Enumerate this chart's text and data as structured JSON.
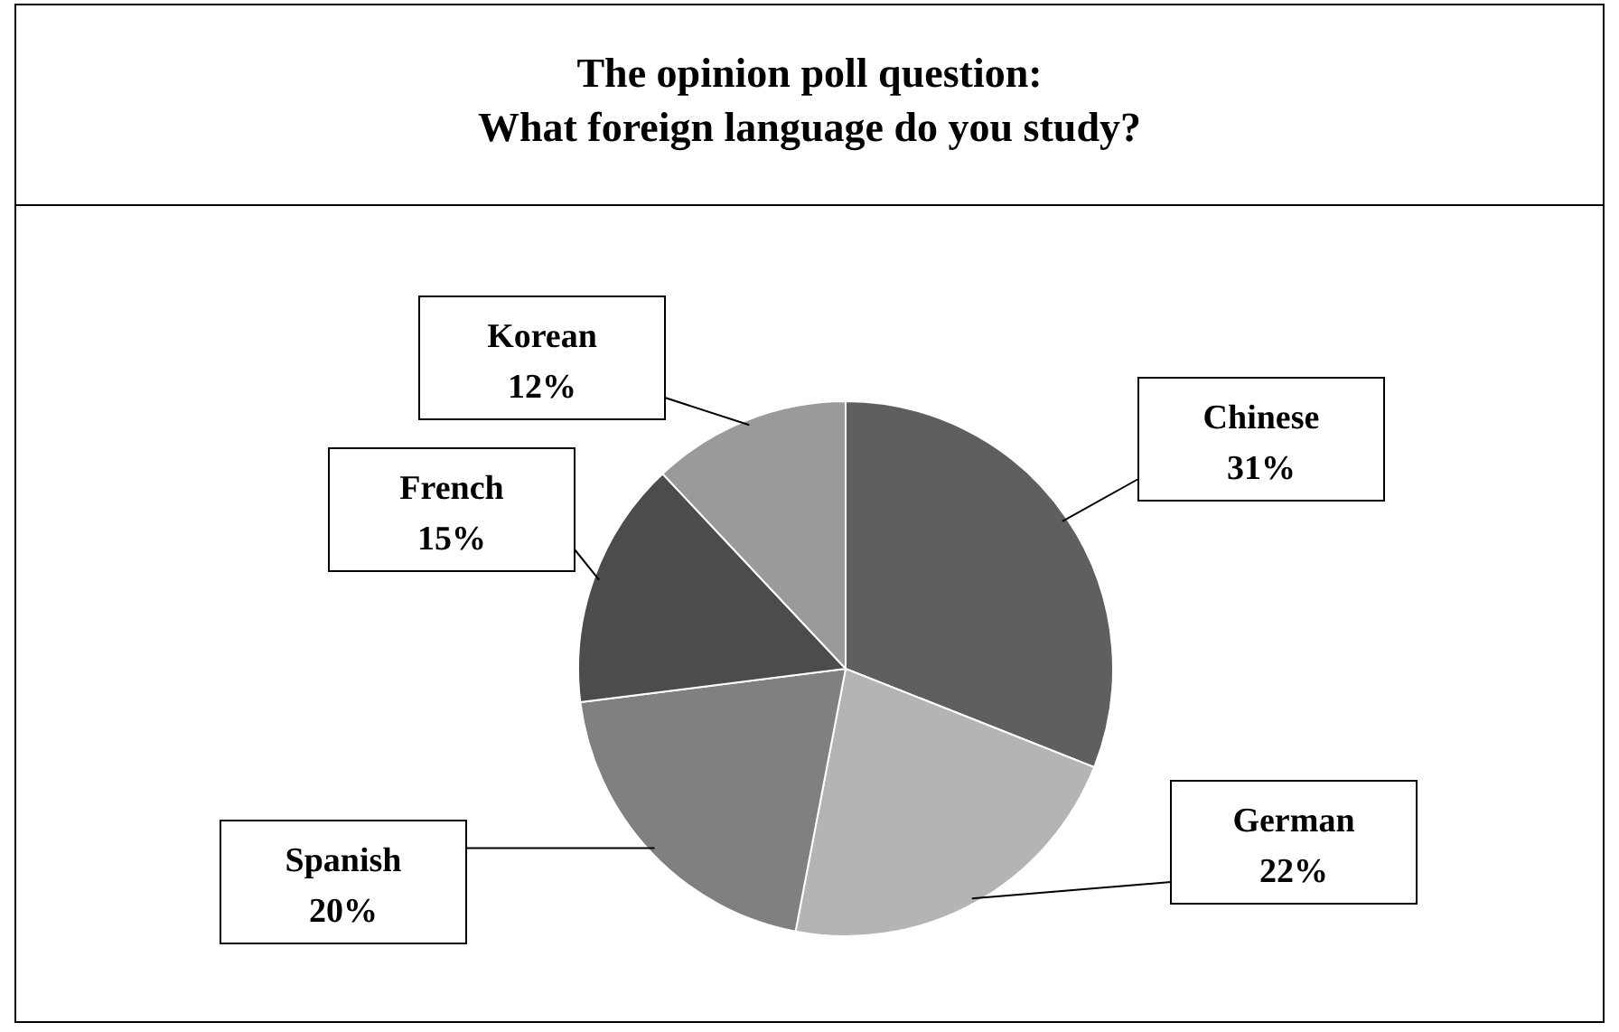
{
  "chart_data": {
    "type": "pie",
    "title": "The opinion poll question:\nWhat foreign language do you study?",
    "categories": [
      "Chinese",
      "German",
      "Spanish",
      "French",
      "Korean"
    ],
    "values": [
      31,
      22,
      20,
      15,
      12
    ],
    "colors": [
      "#5f5f5f",
      "#b4b4b4",
      "#808080",
      "#4c4c4c",
      "#9a9a9a"
    ],
    "value_labels": [
      "31%",
      "22%",
      "20%",
      "15%",
      "12%"
    ]
  }
}
